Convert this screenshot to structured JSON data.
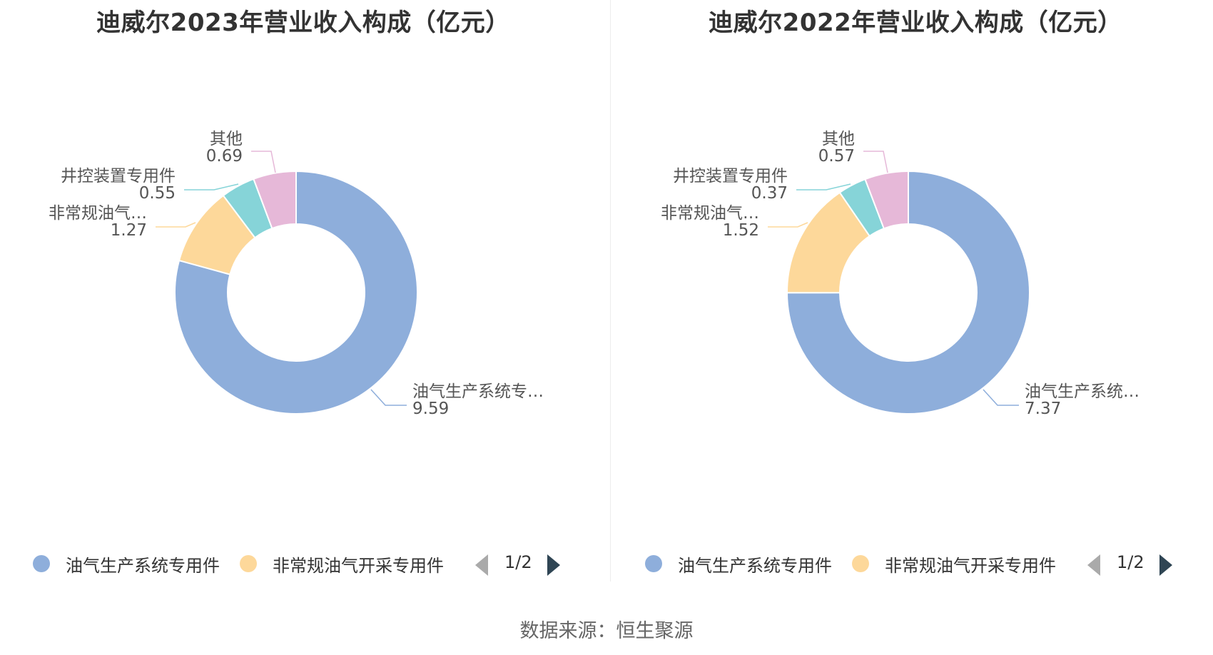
{
  "source_text": "数据来源：恒生聚源",
  "charts": [
    {
      "title": "迪威尔2023年营业收入构成（亿元）",
      "legend": [
        {
          "label": "油气生产系统专用件",
          "color": "#8eaedb"
        },
        {
          "label": "非常规油气开采专用件",
          "color": "#fdd89a"
        }
      ],
      "pager": "1/2",
      "slice_labels": [
        {
          "name": "油气生产系统专…",
          "value": "9.59"
        },
        {
          "name": "非常规油气…",
          "value": "1.27"
        },
        {
          "name": "井控装置专用件",
          "value": "0.55"
        },
        {
          "name": "其他",
          "value": "0.69"
        }
      ]
    },
    {
      "title": "迪威尔2022年营业收入构成（亿元）",
      "legend": [
        {
          "label": "油气生产系统专用件",
          "color": "#8eaedb"
        },
        {
          "label": "非常规油气开采专用件",
          "color": "#fdd89a"
        }
      ],
      "pager": "1/2",
      "slice_labels": [
        {
          "name": "油气生产系统…",
          "value": "7.37"
        },
        {
          "name": "非常规油气…",
          "value": "1.52"
        },
        {
          "name": "井控装置专用件",
          "value": "0.37"
        },
        {
          "name": "其他",
          "value": "0.57"
        }
      ]
    }
  ],
  "chart_data": [
    {
      "type": "pie",
      "variant": "donut",
      "title": "迪威尔2023年营业收入构成（亿元）",
      "categories": [
        "油气生产系统专用件",
        "非常规油气开采专用件",
        "井控装置专用件",
        "其他"
      ],
      "values": [
        9.59,
        1.27,
        0.55,
        0.69
      ],
      "colors": [
        "#8eaedb",
        "#fdd89a",
        "#86d4d8",
        "#e6b8d8"
      ],
      "legend_position": "bottom"
    },
    {
      "type": "pie",
      "variant": "donut",
      "title": "迪威尔2022年营业收入构成（亿元）",
      "categories": [
        "油气生产系统专用件",
        "非常规油气开采专用件",
        "井控装置专用件",
        "其他"
      ],
      "values": [
        7.37,
        1.52,
        0.37,
        0.57
      ],
      "colors": [
        "#8eaedb",
        "#fdd89a",
        "#86d4d8",
        "#e6b8d8"
      ],
      "legend_position": "bottom"
    }
  ]
}
